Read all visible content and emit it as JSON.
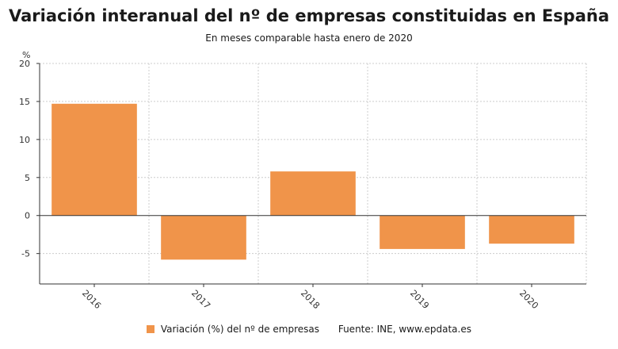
{
  "header": {
    "title": "Variación interanual del nº de empresas constituidas en España",
    "subtitle": "En meses comparable hasta enero de 2020"
  },
  "legend": {
    "series_label": "Variación (%) del nº de empresas",
    "source": "Fuente: INE, www.epdata.es"
  },
  "colors": {
    "bar": "#f0944a",
    "grid": "#cccccc",
    "axis": "#333333"
  },
  "chart_data": {
    "type": "bar",
    "title": "Variación interanual del nº de empresas constituidas en España",
    "subtitle": "En meses comparable hasta enero de 2020",
    "ylabel": "%",
    "xlabel": "",
    "categories": [
      "2016",
      "2017",
      "2018",
      "2019",
      "2020"
    ],
    "series": [
      {
        "name": "Variación (%) del nº de empresas",
        "values": [
          14.7,
          -5.8,
          5.8,
          -4.4,
          -3.7
        ]
      }
    ],
    "ylim": [
      -9,
      20
    ],
    "yticks": [
      20,
      15,
      10,
      5,
      0,
      -5
    ],
    "grid": true,
    "legend_position": "bottom"
  }
}
